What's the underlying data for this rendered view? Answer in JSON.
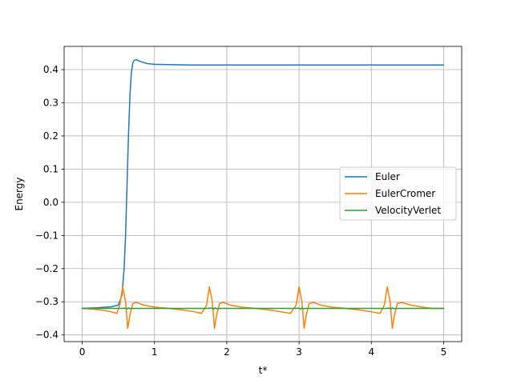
{
  "chart_data": {
    "type": "line",
    "title": "",
    "xlabel": "t*",
    "ylabel": "Energy",
    "xlim": [
      -0.25,
      5.25
    ],
    "ylim": [
      -0.42,
      0.47
    ],
    "grid": true,
    "legend_position": "center-right",
    "x_ticks": [
      0,
      1,
      2,
      3,
      4,
      5
    ],
    "x_tick_labels": [
      "0",
      "1",
      "2",
      "3",
      "4",
      "5"
    ],
    "y_ticks": [
      -0.4,
      -0.3,
      -0.2,
      -0.1,
      0.0,
      0.1,
      0.2,
      0.3,
      0.4
    ],
    "y_tick_labels": [
      "−0.4",
      "−0.3",
      "−0.2",
      "−0.1",
      "0.0",
      "0.1",
      "0.2",
      "0.3",
      "0.4"
    ],
    "series": [
      {
        "name": "Euler",
        "color": "#1f77b4",
        "x": [
          0,
          0.2,
          0.4,
          0.5,
          0.55,
          0.58,
          0.6,
          0.62,
          0.64,
          0.66,
          0.68,
          0.7,
          0.72,
          0.75,
          0.8,
          0.9,
          1.0,
          1.2,
          1.5,
          2,
          3,
          4,
          5
        ],
        "y": [
          -0.32,
          -0.318,
          -0.315,
          -0.31,
          -0.28,
          -0.2,
          -0.1,
          0.05,
          0.2,
          0.32,
          0.39,
          0.42,
          0.428,
          0.43,
          0.425,
          0.418,
          0.416,
          0.415,
          0.414,
          0.414,
          0.414,
          0.414,
          0.414
        ]
      },
      {
        "name": "EulerCromer",
        "color": "#ff7f0e",
        "x": [
          0,
          0.15,
          0.3,
          0.4,
          0.48,
          0.52,
          0.56,
          0.6,
          0.63,
          0.66,
          0.7,
          0.75,
          0.85,
          1.0,
          1.2,
          1.4,
          1.55,
          1.65,
          1.72,
          1.76,
          1.8,
          1.83,
          1.86,
          1.9,
          1.95,
          2.05,
          2.2,
          2.4,
          2.6,
          2.75,
          2.88,
          2.96,
          3.0,
          3.04,
          3.07,
          3.1,
          3.14,
          3.2,
          3.3,
          3.45,
          3.65,
          3.85,
          4.0,
          4.12,
          4.18,
          4.22,
          4.26,
          4.29,
          4.32,
          4.36,
          4.42,
          4.55,
          4.7,
          4.85,
          5.0
        ],
        "y": [
          -0.32,
          -0.322,
          -0.326,
          -0.33,
          -0.335,
          -0.31,
          -0.255,
          -0.3,
          -0.38,
          -0.34,
          -0.305,
          -0.302,
          -0.31,
          -0.316,
          -0.32,
          -0.325,
          -0.33,
          -0.335,
          -0.31,
          -0.255,
          -0.3,
          -0.38,
          -0.34,
          -0.305,
          -0.302,
          -0.31,
          -0.316,
          -0.32,
          -0.325,
          -0.33,
          -0.335,
          -0.31,
          -0.255,
          -0.3,
          -0.38,
          -0.34,
          -0.305,
          -0.302,
          -0.31,
          -0.316,
          -0.32,
          -0.325,
          -0.33,
          -0.335,
          -0.31,
          -0.255,
          -0.3,
          -0.38,
          -0.34,
          -0.305,
          -0.302,
          -0.31,
          -0.316,
          -0.32,
          -0.32
        ]
      },
      {
        "name": "VelocityVerlet",
        "color": "#2ca02c",
        "x": [
          0,
          0.55,
          0.6,
          0.62,
          0.64,
          0.66,
          0.68,
          0.7,
          0.8,
          1.7,
          1.8,
          1.82,
          1.84,
          1.86,
          1.88,
          1.9,
          2.0,
          2.95,
          3.0,
          3.02,
          3.04,
          3.06,
          3.08,
          3.1,
          3.2,
          4.2,
          4.25,
          4.27,
          4.29,
          4.31,
          4.33,
          4.35,
          4.45,
          5.0
        ],
        "y": [
          -0.32,
          -0.32,
          -0.319,
          -0.322,
          -0.318,
          -0.321,
          -0.32,
          -0.32,
          -0.32,
          -0.32,
          -0.319,
          -0.322,
          -0.318,
          -0.321,
          -0.32,
          -0.32,
          -0.32,
          -0.32,
          -0.319,
          -0.322,
          -0.318,
          -0.321,
          -0.32,
          -0.32,
          -0.32,
          -0.32,
          -0.319,
          -0.322,
          -0.318,
          -0.321,
          -0.32,
          -0.32,
          -0.32,
          -0.32
        ]
      }
    ]
  }
}
